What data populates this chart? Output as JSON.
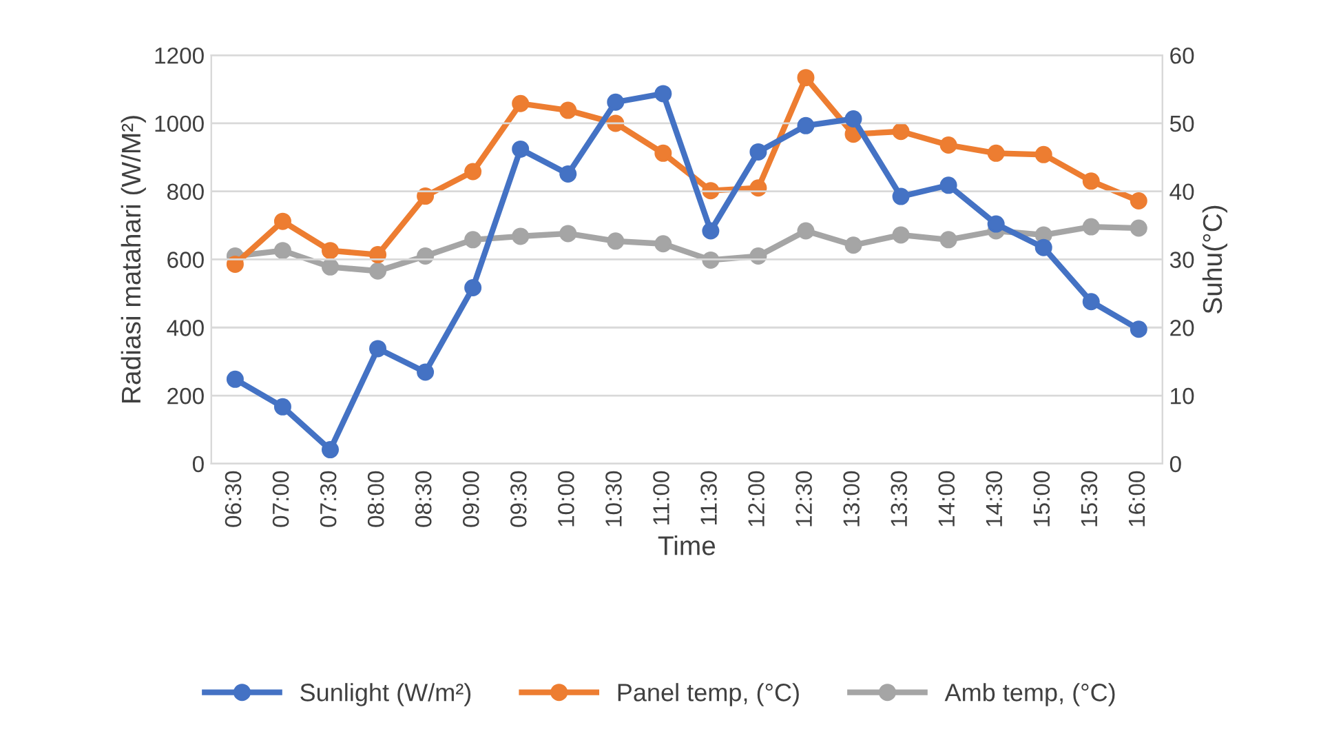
{
  "chart_data": {
    "type": "line",
    "xlabel": "Time",
    "ylabel": "Radiasi matahari (W/M²)",
    "y2label": "Suhu(°C)",
    "categories": [
      "06:30",
      "07:00",
      "07:30",
      "08:00",
      "08:30",
      "09:00",
      "09:30",
      "10:00",
      "10:30",
      "11:00",
      "11:30",
      "12:00",
      "12:30",
      "13:00",
      "13:30",
      "14:00",
      "14:30",
      "15:00",
      "15:30",
      "16:00"
    ],
    "series": [
      {
        "name": "Sunlight (W/m²)",
        "color": "#4472c4",
        "values": [
          248,
          167,
          41,
          338,
          269,
          517,
          924,
          851,
          1062,
          1087,
          684,
          916,
          993,
          1013,
          785,
          818,
          704,
          635,
          476,
          395
        ]
      },
      {
        "name": "Panel temp, (°C)",
        "color": "#ed7d31",
        "axis": "y2",
        "values": [
          29.3,
          35.6,
          31.3,
          30.7,
          39.3,
          42.9,
          52.9,
          51.9,
          50.0,
          45.6,
          40.1,
          40.5,
          56.7,
          48.4,
          48.8,
          46.8,
          45.6,
          45.4,
          41.5,
          38.6
        ]
      },
      {
        "name": "Amb temp, (°C)",
        "color": "#a5a5a5",
        "axis": "y2",
        "values": [
          30.5,
          31.3,
          28.9,
          28.3,
          30.5,
          32.9,
          33.4,
          33.8,
          32.7,
          32.3,
          29.9,
          30.5,
          34.2,
          32.1,
          33.6,
          32.9,
          34.2,
          33.6,
          34.8,
          34.6
        ]
      }
    ],
    "ylim": [
      0,
      1200
    ],
    "yticks": [
      0,
      200,
      400,
      600,
      800,
      1000,
      1200
    ],
    "y2lim": [
      0,
      60
    ],
    "y2ticks": [
      0,
      10,
      20,
      30,
      40,
      50,
      60
    ],
    "grid": "y",
    "legend": "bottom",
    "marker": "circle",
    "line_style": "solid"
  }
}
